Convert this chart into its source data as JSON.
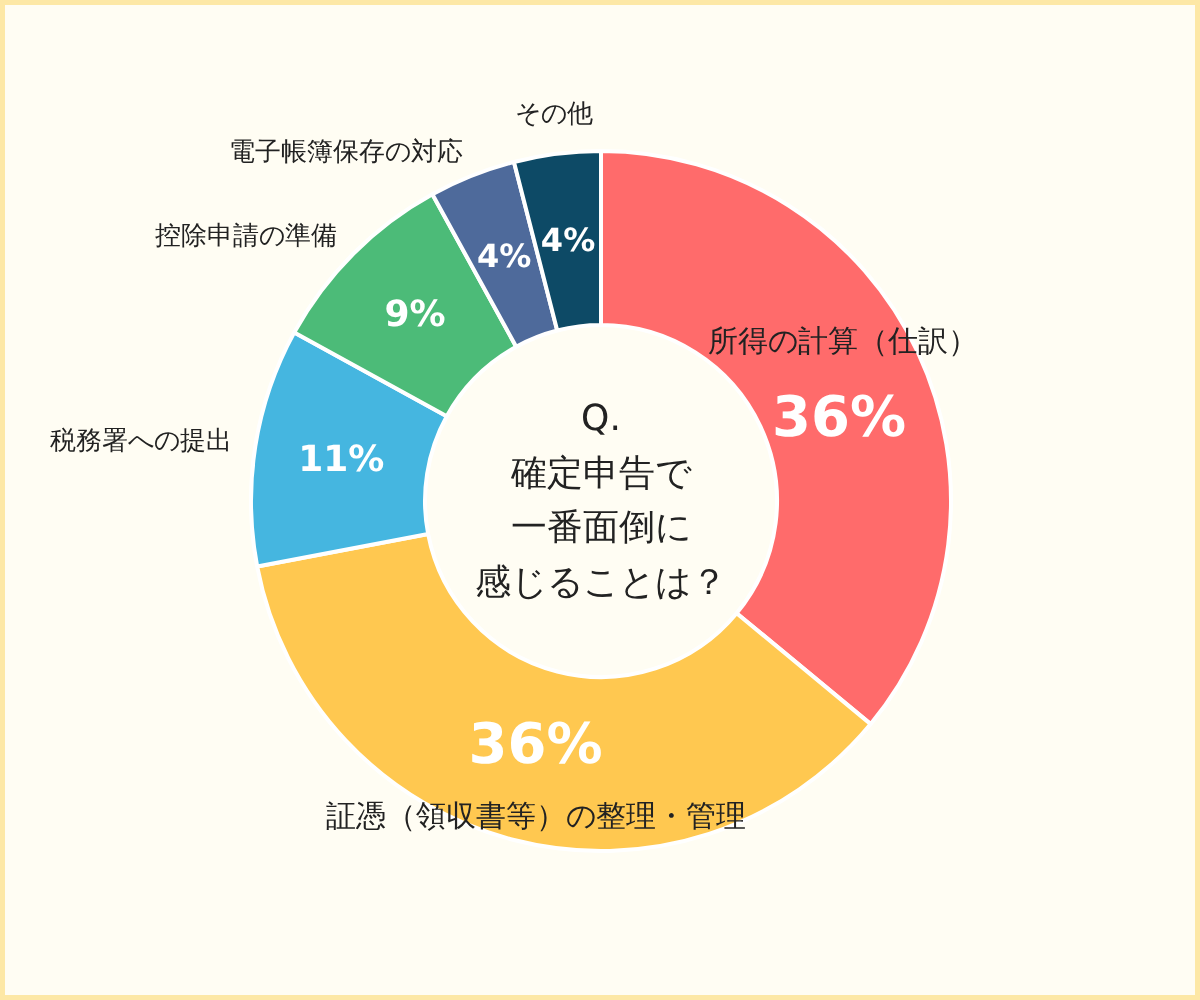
{
  "chart_data": {
    "type": "donut",
    "title": "Q. 確定申告で一番面倒に感じることは？",
    "categories": [
      "所得の計算（仕訳）",
      "証憑（領収書等）の整理・管理",
      "税務署への提出",
      "控除申請の準備",
      "電子帳簿保存の対応",
      "その他"
    ],
    "values": [
      36,
      36,
      11,
      9,
      4,
      4
    ],
    "colors": [
      "#ff6b6b",
      "#ffc850",
      "#45b6e0",
      "#4cbb78",
      "#4e6a9b",
      "#0d4a66"
    ],
    "value_labels": [
      "36%",
      "36%",
      "11%",
      "9%",
      "4%",
      "4%"
    ]
  }
}
